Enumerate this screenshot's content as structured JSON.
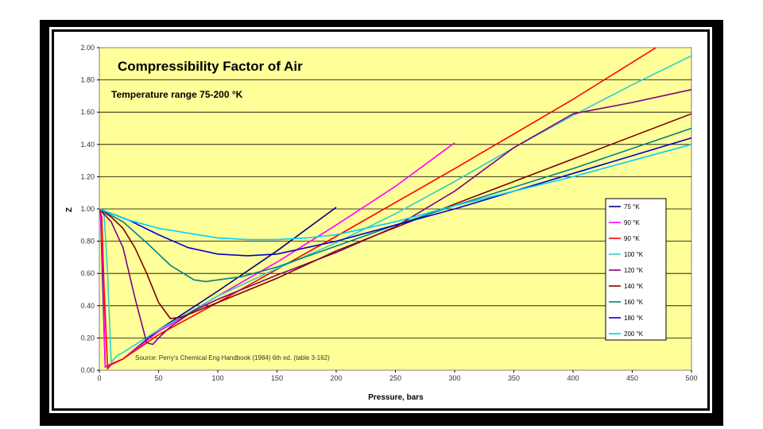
{
  "chart_data": {
    "type": "line",
    "title": "Compressibility Factor of Air",
    "subtitle": "Temperature range 75-200 °K",
    "source": "Source: Perry's Chemical Eng Handbook (1984) 6th ed.  (table 3-162)",
    "xlabel": "Pressure, bars",
    "ylabel": "Z",
    "xlim": [
      0,
      500
    ],
    "ylim": [
      0,
      2
    ],
    "xticks": [
      0,
      50,
      100,
      150,
      200,
      250,
      300,
      350,
      400,
      450,
      500
    ],
    "yticks": [
      "0.00",
      "0.20",
      "0.40",
      "0.60",
      "0.80",
      "1.00",
      "1.20",
      "1.40",
      "1.60",
      "1.80",
      "2.00"
    ],
    "legend_position": "right",
    "colors": {
      "plot_bg": "#ffff99",
      "grid": "#000000"
    },
    "series": [
      {
        "name": "75 °K",
        "color": "#000080",
        "x": [
          0,
          1,
          5,
          10,
          20,
          50,
          100,
          150,
          200
        ],
        "y": [
          1.0,
          0.97,
          0.02,
          0.035,
          0.07,
          0.25,
          0.49,
          0.74,
          1.01
        ]
      },
      {
        "name": "90 °K",
        "color": "#ff00ff",
        "x": [
          0,
          1,
          3,
          5,
          10,
          20,
          50,
          100,
          150,
          200,
          250,
          300
        ],
        "y": [
          1.0,
          0.98,
          0.6,
          0.02,
          0.04,
          0.07,
          0.24,
          0.46,
          0.67,
          0.9,
          1.14,
          1.41
        ]
      },
      {
        "name": "90 °K",
        "color": "#ff0000",
        "x": [
          0,
          2,
          4,
          7,
          10,
          20,
          50,
          100,
          200,
          300,
          400,
          470
        ],
        "y": [
          1.0,
          0.95,
          0.5,
          0.01,
          0.035,
          0.07,
          0.22,
          0.42,
          0.83,
          1.25,
          1.68,
          2.0
        ]
      },
      {
        "name": "100 °K",
        "color": "#33cccc",
        "x": [
          0,
          4,
          7,
          10,
          15,
          20,
          50,
          100,
          150,
          200,
          250,
          300,
          350,
          400,
          450,
          500
        ],
        "y": [
          1.0,
          0.96,
          0.6,
          0.05,
          0.09,
          0.11,
          0.25,
          0.46,
          0.63,
          0.79,
          0.97,
          1.17,
          1.38,
          1.58,
          1.77,
          1.95
        ]
      },
      {
        "name": "120 °K",
        "color": "#800080",
        "x": [
          0,
          10,
          20,
          30,
          40,
          45,
          50,
          60,
          80,
          100,
          150,
          200,
          250,
          300,
          350,
          400,
          450,
          500
        ],
        "y": [
          1.0,
          0.92,
          0.76,
          0.45,
          0.17,
          0.16,
          0.2,
          0.27,
          0.37,
          0.44,
          0.59,
          0.73,
          0.89,
          1.11,
          1.38,
          1.59,
          1.66,
          1.74
        ]
      },
      {
        "name": "140 °K",
        "color": "#800000",
        "x": [
          0,
          10,
          20,
          30,
          40,
          50,
          60,
          70,
          80,
          100,
          150,
          200,
          300,
          400,
          500
        ],
        "y": [
          1.0,
          0.95,
          0.88,
          0.76,
          0.6,
          0.42,
          0.32,
          0.33,
          0.36,
          0.42,
          0.57,
          0.74,
          1.03,
          1.31,
          1.59
        ]
      },
      {
        "name": "160 °K",
        "color": "#008080",
        "x": [
          0,
          20,
          40,
          60,
          80,
          90,
          100,
          120,
          150,
          200,
          250,
          300,
          400,
          500
        ],
        "y": [
          1.0,
          0.92,
          0.79,
          0.65,
          0.56,
          0.55,
          0.56,
          0.58,
          0.64,
          0.77,
          0.9,
          1.02,
          1.25,
          1.5
        ]
      },
      {
        "name": "180 °K",
        "color": "#0000cc",
        "x": [
          0,
          25,
          50,
          75,
          100,
          125,
          150,
          175,
          200,
          250,
          300,
          400,
          500
        ],
        "y": [
          1.0,
          0.93,
          0.84,
          0.76,
          0.72,
          0.71,
          0.72,
          0.76,
          0.8,
          0.9,
          1.0,
          1.22,
          1.44
        ]
      },
      {
        "name": "200 °K",
        "color": "#00ccff",
        "x": [
          0,
          25,
          50,
          75,
          100,
          125,
          150,
          175,
          200,
          250,
          300,
          400,
          500
        ],
        "y": [
          1.0,
          0.93,
          0.88,
          0.85,
          0.82,
          0.81,
          0.81,
          0.82,
          0.84,
          0.92,
          1.02,
          1.2,
          1.4
        ]
      }
    ]
  }
}
